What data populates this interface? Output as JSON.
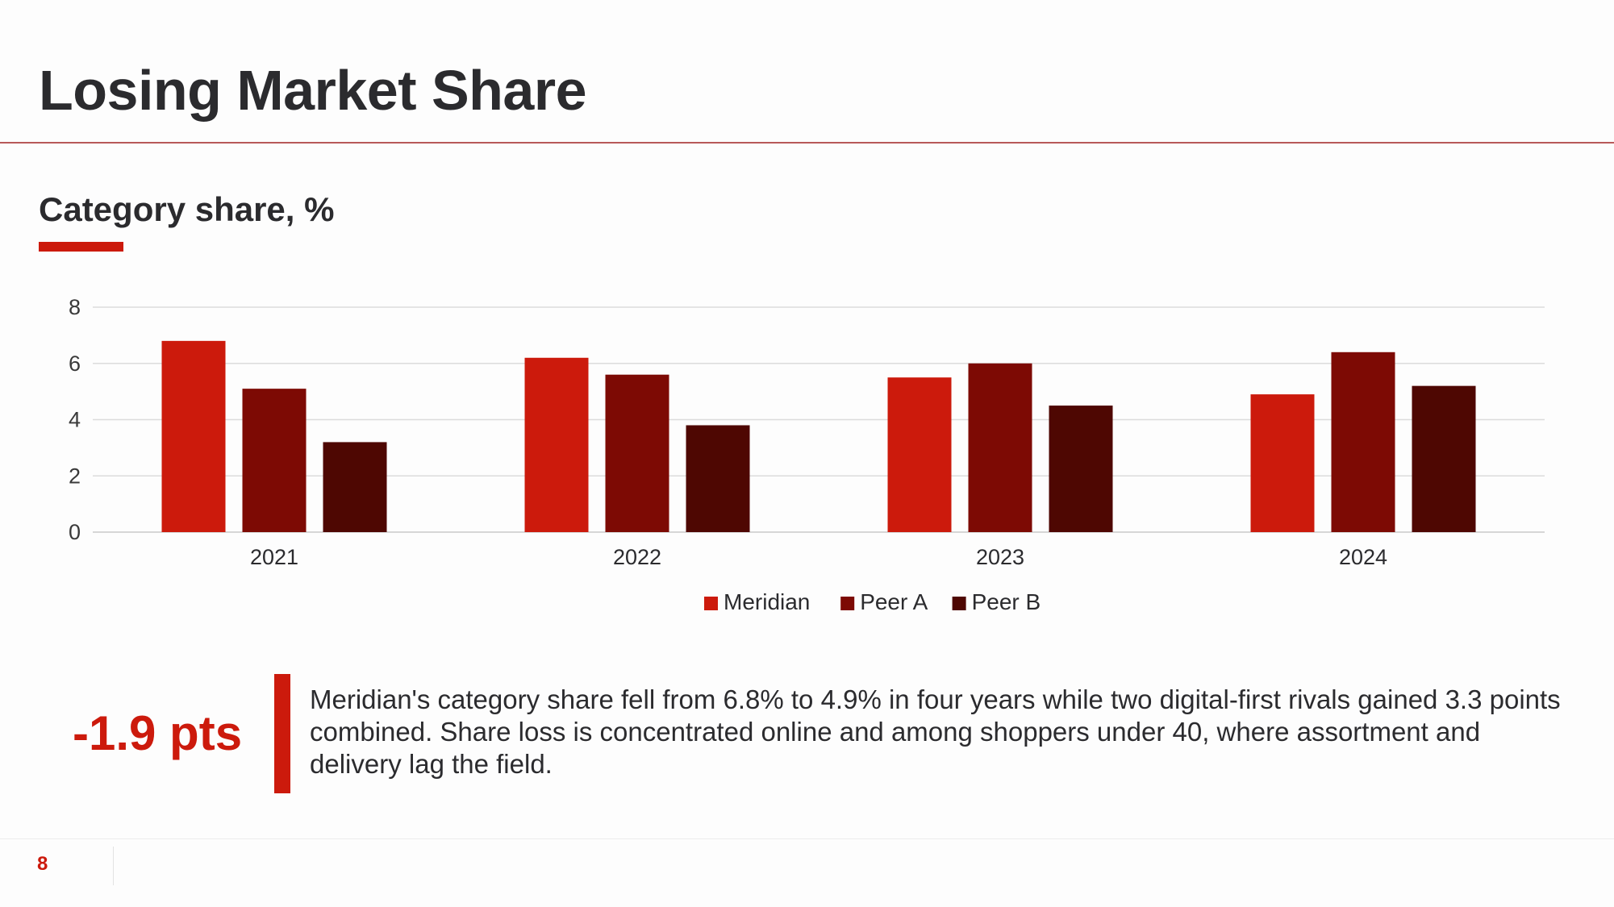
{
  "slide": {
    "title": "Losing Market Share",
    "chart_heading": "Category share, %",
    "metric": "-1.9 pts",
    "summary": "Meridian's category share fell from 6.8% to 4.9% in four years while two digital-first rivals gained 3.3 points combined. Share loss is concentrated online and among shoppers under 40, where assortment and delivery lag the field.",
    "page_number": "8"
  },
  "colors": {
    "accent": "#cc1a0c",
    "title_text": "#2b2b2e"
  },
  "chart_data": {
    "type": "bar",
    "title": "Category share, %",
    "categories": [
      "2021",
      "2022",
      "2023",
      "2024"
    ],
    "series": [
      {
        "name": "Meridian",
        "color": "#cc1a0c",
        "values": [
          6.8,
          6.2,
          5.5,
          4.9
        ]
      },
      {
        "name": "Peer A",
        "color": "#7d0a04",
        "values": [
          5.1,
          5.6,
          6.0,
          6.4
        ]
      },
      {
        "name": "Peer B",
        "color": "#4e0702",
        "values": [
          3.2,
          3.8,
          4.5,
          5.2
        ]
      }
    ],
    "yticks": [
      0,
      2,
      4,
      6,
      8
    ],
    "ylim": [
      0,
      8
    ],
    "grid": true,
    "legend": "bottom-center"
  }
}
